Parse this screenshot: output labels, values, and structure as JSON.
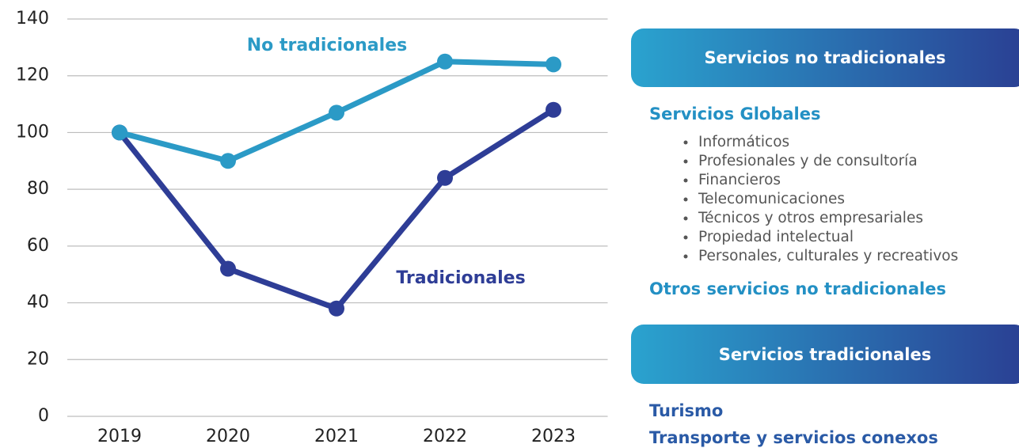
{
  "chart_data": {
    "type": "line",
    "categories": [
      "2019",
      "2020",
      "2021",
      "2022",
      "2023"
    ],
    "series": [
      {
        "name": "No tradicionales",
        "color": "#2b9ac6",
        "values": [
          100,
          90,
          107,
          125,
          124
        ]
      },
      {
        "name": "Tradicionales",
        "color": "#2e3d96",
        "values": [
          100,
          52,
          38,
          84,
          108
        ]
      }
    ],
    "ylim": [
      0,
      140
    ],
    "yticks": [
      0,
      20,
      40,
      60,
      80,
      100,
      120,
      140
    ],
    "grid": true
  },
  "panel": {
    "sections": [
      {
        "title": "Servicios no tradicionales",
        "groups": [
          {
            "heading": "Servicios Globales",
            "items": [
              "Informáticos",
              "Profesionales y de consultoría",
              "Financieros",
              "Telecomunicaciones",
              "Técnicos y otros empresariales",
              "Propiedad intelectual",
              "Personales, culturales y recreativos"
            ]
          },
          {
            "heading": "Otros servicios no tradicionales"
          }
        ]
      },
      {
        "title": "Servicios tradicionales",
        "groups": [
          {
            "heading": "Turismo"
          },
          {
            "heading": "Transporte y servicios conexos"
          }
        ]
      }
    ]
  }
}
